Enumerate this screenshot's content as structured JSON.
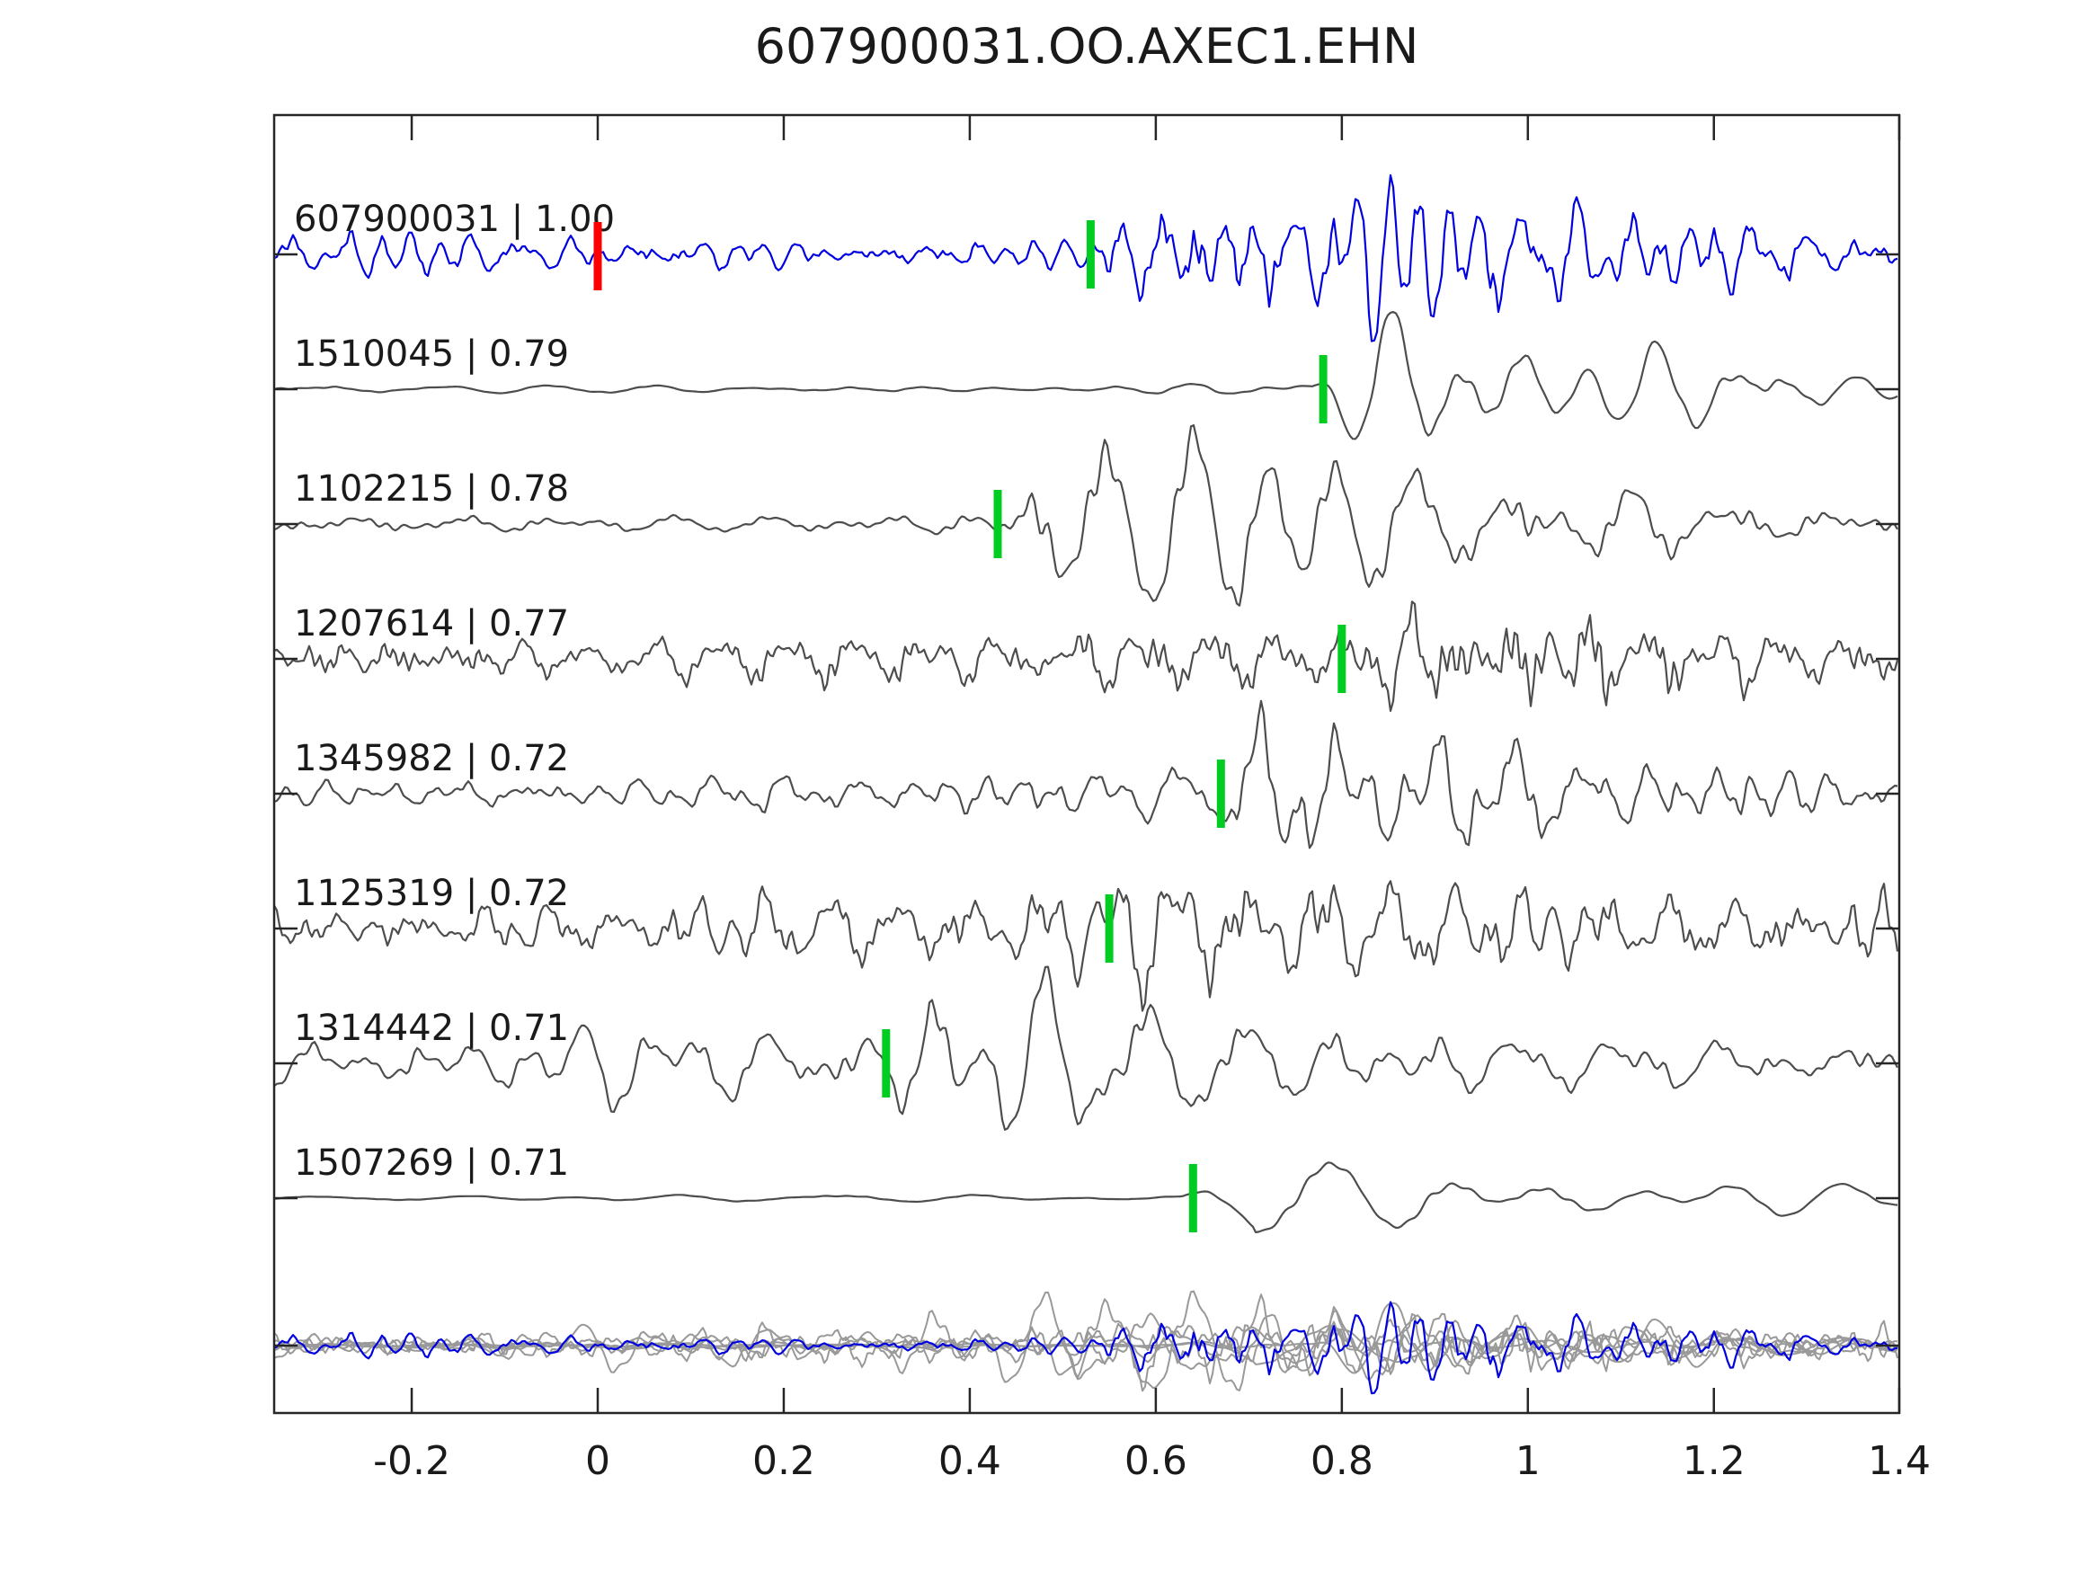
{
  "chart_data": {
    "type": "line",
    "title": "607900031.OO.AXEC1.EHN",
    "x_axis": {
      "range": [
        -0.35,
        1.4
      ],
      "ticks": [
        -0.2,
        0,
        0.2,
        0.4,
        0.6,
        0.8,
        1,
        1.2,
        1.4
      ],
      "tick_labels": [
        "-0.2",
        "0",
        "0.2",
        "0.4",
        "0.6",
        "0.8",
        "1",
        "1.2",
        "1.4"
      ],
      "label": ""
    },
    "y_axis": {
      "tick_labels": [],
      "label": ""
    },
    "legend": "none",
    "grid": false,
    "colors": {
      "reference_trace": "#0000e0",
      "trace": "#4d4d4d",
      "overlay_trace": "#999999",
      "overlay_reference": "#0000e0",
      "pick_marker": "#00cc22",
      "reference_marker": "#ff0000",
      "axis": "#262626",
      "text": "#1a1a1a"
    },
    "reference_marker": {
      "trace_id": "607900031",
      "x": 0.0
    },
    "traces": [
      {
        "id": "607900031",
        "correlation": "1.00",
        "label": "607900031 | 1.00",
        "pick_time": 0.53,
        "is_reference": true
      },
      {
        "id": "1510045",
        "correlation": "0.79",
        "label": "1510045 | 0.79",
        "pick_time": 0.78,
        "is_reference": false
      },
      {
        "id": "1102215",
        "correlation": "0.78",
        "label": "1102215 | 0.78",
        "pick_time": 0.43,
        "is_reference": false
      },
      {
        "id": "1207614",
        "correlation": "0.77",
        "label": "1207614 | 0.77",
        "pick_time": 0.8,
        "is_reference": false
      },
      {
        "id": "1345982",
        "correlation": "0.72",
        "label": "1345982 | 0.72",
        "pick_time": 0.67,
        "is_reference": false
      },
      {
        "id": "1125319",
        "correlation": "0.72",
        "label": "1125319 | 0.72",
        "pick_time": 0.55,
        "is_reference": false
      },
      {
        "id": "1314442",
        "correlation": "0.71",
        "label": "1314442 | 0.71",
        "pick_time": 0.31,
        "is_reference": false
      },
      {
        "id": "1507269",
        "correlation": "0.71",
        "label": "1507269 | 0.71",
        "pick_time": 0.64,
        "is_reference": false
      }
    ],
    "overlay_row": {
      "description": "all traces overplotted, reference trace in blue on top"
    }
  }
}
